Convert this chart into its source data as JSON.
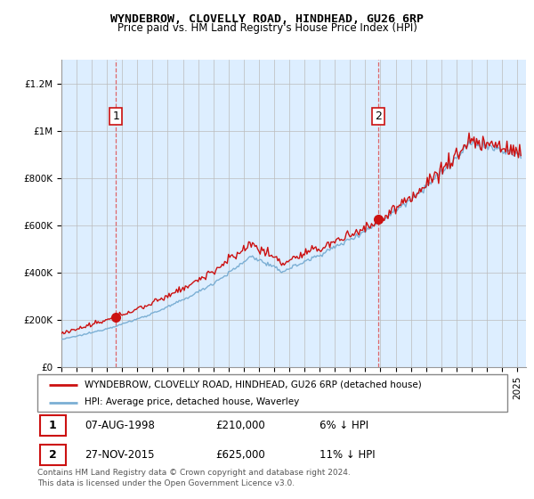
{
  "title": "WYNDEBROW, CLOVELLY ROAD, HINDHEAD, GU26 6RP",
  "subtitle": "Price paid vs. HM Land Registry's House Price Index (HPI)",
  "ylabel_ticks": [
    "£0",
    "£200K",
    "£400K",
    "£600K",
    "£800K",
    "£1M",
    "£1.2M"
  ],
  "ytick_vals": [
    0,
    200000,
    400000,
    600000,
    800000,
    1000000,
    1200000
  ],
  "ylim": [
    0,
    1300000
  ],
  "sale1_date": "1998-08-07",
  "sale1_price": 210000,
  "sale2_date": "2015-11-27",
  "sale2_price": 625000,
  "legend_entry1": "WYNDEBROW, CLOVELLY ROAD, HINDHEAD, GU26 6RP (detached house)",
  "legend_entry2": "HPI: Average price, detached house, Waverley",
  "table_row1": [
    "1",
    "07-AUG-1998",
    "£210,000",
    "6% ↓ HPI"
  ],
  "table_row2": [
    "2",
    "27-NOV-2015",
    "£625,000",
    "11% ↓ HPI"
  ],
  "footnote": "Contains HM Land Registry data © Crown copyright and database right 2024.\nThis data is licensed under the Open Government Licence v3.0.",
  "hpi_color": "#7bafd4",
  "sale_color": "#cc1111",
  "dashed_color": "#dd4444",
  "bg_fill_color": "#ddeeff",
  "background_color": "#ffffff",
  "grid_color": "#bbbbbb",
  "box_color": "#cc1111",
  "title_fontsize": 9.5,
  "subtitle_fontsize": 8.5,
  "tick_fontsize": 7.5,
  "legend_fontsize": 8
}
